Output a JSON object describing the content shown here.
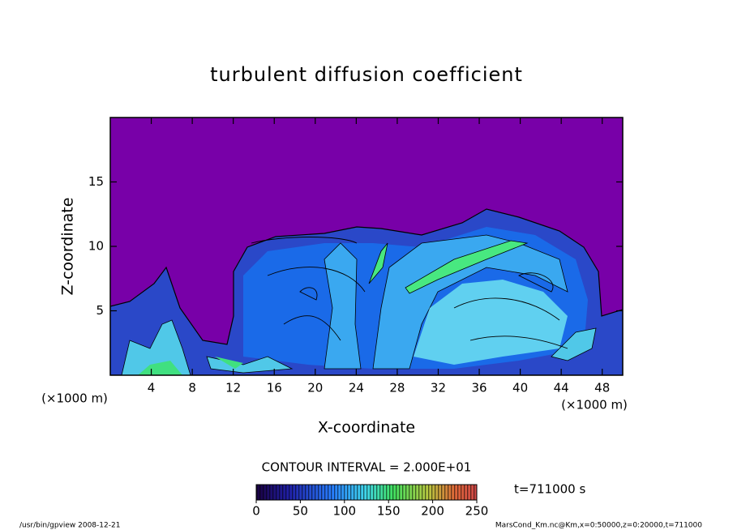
{
  "chart_data": {
    "type": "contour",
    "title": "turbulent diffusion coefficient",
    "x_label": "X-coordinate",
    "y_label": "Z-coordinate",
    "x_unit": "(×1000 m)",
    "y_unit": "(×1000 m)",
    "xlim": [
      0,
      50
    ],
    "xticks": [
      4,
      8,
      12,
      16,
      20,
      24,
      28,
      32,
      36,
      40,
      44,
      48
    ],
    "ylim": [
      0,
      20
    ],
    "yticks": [
      5,
      10,
      15
    ],
    "contour_interval": "CONTOUR INTERVAL = 2.000E+01",
    "time_label": "t=711000 s",
    "colorbar": {
      "lim": [
        0,
        250
      ],
      "ticks": [
        0,
        50,
        100,
        150,
        200,
        250
      ]
    },
    "footer_left": "/usr/bin/gpview   2008-12-21",
    "footer_right": "MarsCond_Km.nc@Km,x=0:50000,z=0:20000,t=711000"
  }
}
